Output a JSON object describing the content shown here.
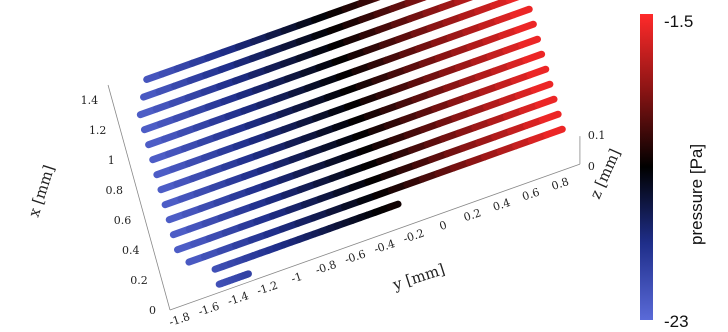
{
  "chart_data": {
    "type": "scatter",
    "title": "",
    "xlabel": "x [mm]",
    "ylabel": "y [mm]",
    "zlabel": "z [mm]",
    "x_ticks": [
      "0",
      "0.2",
      "0.4",
      "0.6",
      "0.8",
      "1",
      "1.2",
      "1.4"
    ],
    "y_ticks": [
      "-1.8",
      "-1.6",
      "-1.4",
      "-1.2",
      "-1",
      "-0.8",
      "-0.6",
      "-0.4",
      "-0.2",
      "0",
      "0.2",
      "0.4",
      "0.6",
      "0.8"
    ],
    "z_ticks": [
      "0",
      "0.1"
    ],
    "xlim": [
      0,
      1.5
    ],
    "ylim": [
      -1.9,
      0.9
    ],
    "zlim": [
      0,
      0.1
    ],
    "grid": false,
    "colorbar": {
      "label": "pressure [Pa]",
      "min_label": "-23",
      "max_label": "-1.5",
      "min": -23,
      "max": -1.5,
      "colors": [
        "#5a6ad8",
        "#1f2e8a",
        "#000000",
        "#8a1414",
        "#ff2a2a"
      ]
    },
    "series_description_points": {
      "slices_x": [
        0.05,
        0.15,
        0.25,
        0.35,
        0.45,
        0.55,
        0.65,
        0.75,
        0.85,
        0.95,
        1.05,
        1.15,
        1.25,
        1.35,
        1.45
      ],
      "y_start": [
        -1.55,
        -1.55,
        -1.7,
        -1.75,
        -1.75,
        -1.75,
        -1.75,
        -1.75,
        -1.75,
        -1.75,
        -1.75,
        -1.75,
        -1.75,
        -1.7,
        -1.65
      ],
      "y_end": [
        -1.35,
        -0.3,
        0.85,
        0.85,
        0.85,
        0.85,
        0.85,
        0.85,
        0.85,
        0.85,
        0.85,
        0.85,
        0.85,
        0.85,
        0.85
      ],
      "pressure_at_y_start": -23,
      "pressure_at_y_end": -1.5
    }
  }
}
